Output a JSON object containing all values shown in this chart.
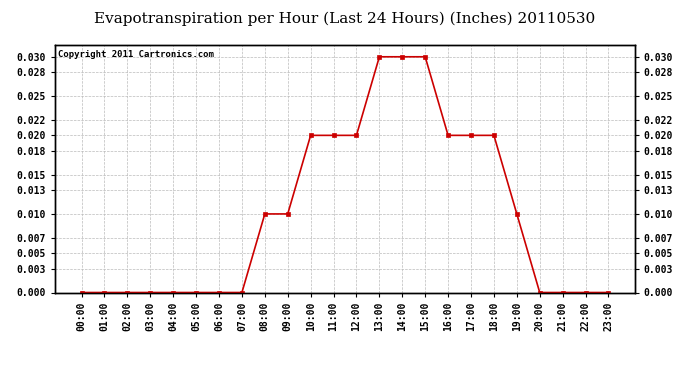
{
  "title": "Evapotranspiration per Hour (Last 24 Hours) (Inches) 20110530",
  "copyright_text": "Copyright 2011 Cartronics.com",
  "hours": [
    "00:00",
    "01:00",
    "02:00",
    "03:00",
    "04:00",
    "05:00",
    "06:00",
    "07:00",
    "08:00",
    "09:00",
    "10:00",
    "11:00",
    "12:00",
    "13:00",
    "14:00",
    "15:00",
    "16:00",
    "17:00",
    "18:00",
    "19:00",
    "20:00",
    "21:00",
    "22:00",
    "23:00"
  ],
  "values": [
    0.0,
    0.0,
    0.0,
    0.0,
    0.0,
    0.0,
    0.0,
    0.0,
    0.01,
    0.01,
    0.02,
    0.02,
    0.02,
    0.03,
    0.03,
    0.03,
    0.02,
    0.02,
    0.02,
    0.01,
    0.0,
    0.0,
    0.0,
    0.0
  ],
  "line_color": "#cc0000",
  "marker_color": "#cc0000",
  "bg_color": "#ffffff",
  "plot_bg_color": "#ffffff",
  "grid_color": "#bbbbbb",
  "title_fontsize": 11,
  "copyright_fontsize": 6.5,
  "ylim": [
    0.0,
    0.0315
  ],
  "yticks": [
    0.0,
    0.003,
    0.005,
    0.007,
    0.01,
    0.013,
    0.015,
    0.018,
    0.02,
    0.022,
    0.025,
    0.028,
    0.03
  ],
  "tick_label_fontsize": 7,
  "axis_label_fontsize": 7
}
